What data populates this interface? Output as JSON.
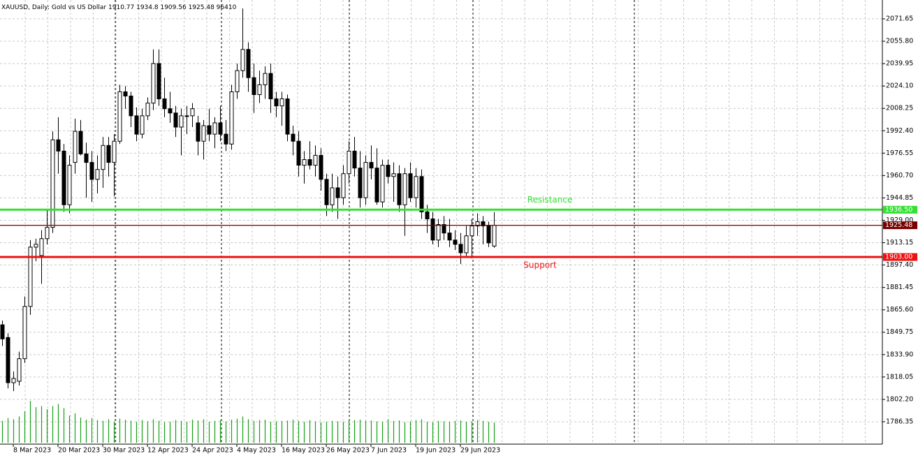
{
  "chart_data": {
    "type": "candlestick",
    "header": {
      "symbol": "XAUUSD, Daily:",
      "description": "Gold vs US Dollar",
      "open": 1910.77,
      "high": 1934.8,
      "low": 1909.56,
      "close": 1925.48,
      "volume": 96410
    },
    "open": [
      1855,
      1846,
      1814,
      1815,
      1831,
      1868,
      1910,
      1904,
      1916,
      1924,
      1986,
      1978,
      1940,
      1970,
      1992,
      1976,
      1970,
      1958,
      1965,
      1982,
      1970,
      1985,
      2020,
      2017,
      2003,
      1990,
      2003,
      2012,
      2040,
      2015,
      2008,
      2005,
      1995,
      2003,
      2003,
      1998,
      1985,
      1996,
      1990,
      1998,
      1990,
      1983,
      2020,
      2035,
      2050,
      2030,
      2018,
      2025,
      2033,
      2015,
      2010,
      2015,
      1990,
      1985,
      1968,
      1972,
      1968,
      1975,
      1958,
      1940,
      1952,
      1945,
      1962,
      1978,
      1966,
      1945,
      1970,
      1966,
      1942,
      1968,
      1960,
      1962,
      1940,
      1962,
      1945,
      1960,
      1935,
      1930,
      1915,
      1926,
      1920,
      1915,
      1912,
      1906,
      1918,
      1925,
      1928,
      1925,
      1910.77
    ],
    "high": [
      1858,
      1849,
      1822,
      1836,
      1875,
      1915,
      1916,
      1922,
      1936,
      1992,
      2002,
      1983,
      1975,
      2001,
      2000,
      1984,
      1978,
      1975,
      1988,
      1988,
      1990,
      2025,
      2024,
      2020,
      2009,
      2008,
      2016,
      2050,
      2050,
      2030,
      2020,
      2010,
      2008,
      2010,
      2012,
      2003,
      2000,
      2008,
      2002,
      2010,
      2000,
      2025,
      2040,
      2079,
      2055,
      2040,
      2035,
      2038,
      2040,
      2020,
      2020,
      2018,
      1996,
      1992,
      1978,
      1985,
      1982,
      1980,
      1962,
      1962,
      1960,
      1968,
      1985,
      1988,
      1978,
      1975,
      1982,
      1980,
      1972,
      1972,
      1970,
      1968,
      1966,
      1970,
      1966,
      1965,
      1940,
      1935,
      1930,
      1932,
      1930,
      1922,
      1920,
      1925,
      1930,
      1934,
      1932,
      1928,
      1934.8
    ],
    "low": [
      1840,
      1810,
      1808,
      1812,
      1828,
      1862,
      1900,
      1884,
      1912,
      1920,
      1962,
      1935,
      1934,
      1962,
      1975,
      1945,
      1942,
      1948,
      1952,
      1960,
      1946,
      1983,
      2008,
      1995,
      1985,
      1987,
      2000,
      2007,
      2010,
      2002,
      1998,
      1988,
      1975,
      1990,
      1995,
      1975,
      1972,
      1985,
      1980,
      1985,
      1978,
      1979,
      2015,
      2030,
      2020,
      2005,
      2012,
      2015,
      2005,
      2002,
      1996,
      1985,
      1975,
      1960,
      1955,
      1965,
      1960,
      1950,
      1932,
      1935,
      1930,
      1940,
      1955,
      1960,
      1938,
      1940,
      1958,
      1940,
      1938,
      1955,
      1942,
      1935,
      1918,
      1942,
      1938,
      1930,
      1920,
      1912,
      1910,
      1915,
      1910,
      1908,
      1898,
      1903,
      1902,
      1918,
      1912,
      1910,
      1909.56
    ],
    "close": [
      1845,
      1814,
      1817,
      1831,
      1868,
      1910,
      1912,
      1916,
      1924,
      1986,
      1978,
      1940,
      1968,
      1992,
      1976,
      1970,
      1958,
      1965,
      1982,
      1970,
      1985,
      2020,
      2017,
      2003,
      1990,
      2003,
      2012,
      2040,
      2015,
      2008,
      2005,
      1995,
      2003,
      2003,
      2008,
      1985,
      1996,
      1990,
      1998,
      1990,
      1983,
      2020,
      2035,
      2050,
      2030,
      2018,
      2025,
      2033,
      2015,
      2010,
      2015,
      1990,
      1985,
      1968,
      1972,
      1968,
      1975,
      1958,
      1940,
      1952,
      1945,
      1962,
      1978,
      1966,
      1945,
      1970,
      1966,
      1942,
      1968,
      1960,
      1962,
      1940,
      1962,
      1945,
      1960,
      1935,
      1930,
      1915,
      1926,
      1920,
      1915,
      1912,
      1906,
      1918,
      1925,
      1928,
      1925,
      1913,
      1925.48
    ],
    "volume": [
      105000,
      118000,
      112000,
      125000,
      150000,
      200000,
      170000,
      175000,
      160000,
      175000,
      185000,
      165000,
      130000,
      140000,
      120000,
      110000,
      118000,
      108000,
      105000,
      112000,
      100000,
      115000,
      110000,
      105000,
      100000,
      108000,
      102000,
      112000,
      105000,
      98000,
      100000,
      108000,
      104000,
      100000,
      110000,
      106000,
      112000,
      100000,
      104000,
      108000,
      102000,
      110000,
      115000,
      125000,
      112000,
      104000,
      108000,
      110000,
      100000,
      102000,
      104000,
      106000,
      110000,
      104000,
      100000,
      108000,
      102000,
      98000,
      100000,
      104000,
      102000,
      100000,
      106000,
      108000,
      110000,
      104000,
      106000,
      102000,
      100000,
      112000,
      104000,
      106000,
      98000,
      102000,
      108000,
      112000,
      100000,
      98000,
      104000,
      102000,
      100000,
      104000,
      106000,
      100000,
      102000,
      108000,
      104000,
      100000,
      96410
    ],
    "xlim": [
      -0.375,
      157.5
    ],
    "xticks": [
      {
        "value": 2,
        "label": "8 Mar 2023"
      },
      {
        "value": 10,
        "label": "20 Mar 2023"
      },
      {
        "value": 18,
        "label": "30 Mar 2023"
      },
      {
        "value": 26,
        "label": "12 Apr 2023"
      },
      {
        "value": 34,
        "label": "24 Apr 2023"
      },
      {
        "value": 42,
        "label": "4 May 2023"
      },
      {
        "value": 50,
        "label": "16 May 2023"
      },
      {
        "value": 58,
        "label": "26 May 2023"
      },
      {
        "value": 66,
        "label": "7 Jun 2023"
      },
      {
        "value": 74,
        "label": "19 Jun 2023"
      },
      {
        "value": 82,
        "label": "29 Jun 2023"
      }
    ],
    "ylim": [
      1770.5,
      2085
    ],
    "yticks": [
      {
        "value": 2071.65,
        "label": "2071.65"
      },
      {
        "value": 2055.8,
        "label": "2055.80"
      },
      {
        "value": 2039.95,
        "label": "2039.95"
      },
      {
        "value": 2024.1,
        "label": "2024.10"
      },
      {
        "value": 2008.25,
        "label": "2008.25"
      },
      {
        "value": 1992.4,
        "label": "1992.40"
      },
      {
        "value": 1976.55,
        "label": "1976.55"
      },
      {
        "value": 1960.7,
        "label": "1960.70"
      },
      {
        "value": 1944.85,
        "label": "1944.85"
      },
      {
        "value": 1929,
        "label": "1929.00"
      },
      {
        "value": 1913.15,
        "label": "1913.15"
      },
      {
        "value": 1897.4,
        "label": "1897.40"
      },
      {
        "value": 1881.45,
        "label": "1881.45"
      },
      {
        "value": 1865.6,
        "label": "1865.60"
      },
      {
        "value": 1849.75,
        "label": "1849.75"
      },
      {
        "value": 1833.9,
        "label": "1833.90"
      },
      {
        "value": 1818.05,
        "label": "1818.05"
      },
      {
        "value": 1802.2,
        "label": "1802.20"
      },
      {
        "value": 1786.35,
        "label": "1786.35"
      }
    ],
    "grid": true,
    "bull_color": "#ffffff",
    "bear_color": "#000000",
    "volume_color": "#16a016",
    "levels": [
      {
        "name": "Resistance",
        "value": 1936.5,
        "value_label": "1936.50",
        "color": "#33e033"
      },
      {
        "value": 1925.48,
        "color": "#7a0000"
      },
      {
        "name": "Support",
        "value": 1903,
        "value_label": "1903.00",
        "color": "#ee1111"
      }
    ]
  }
}
